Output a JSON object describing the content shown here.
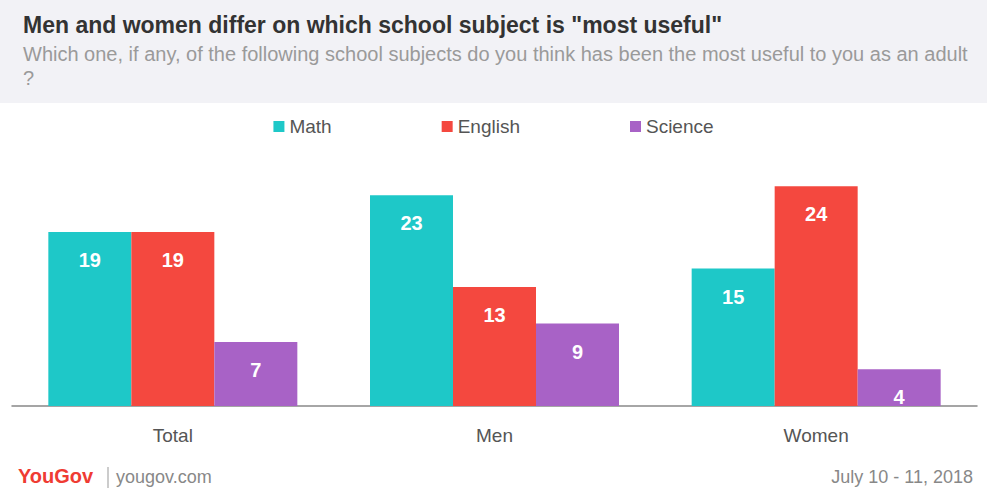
{
  "chart_data": {
    "type": "bar",
    "title": "Men and women differ on which school subject is \"most useful\"",
    "subtitle": "Which one, if any, of the following school subjects do you think has been the most useful to you as an adult?",
    "categories": [
      "Total",
      "Men",
      "Women"
    ],
    "series": [
      {
        "name": "Math",
        "color": "#1ec8c8",
        "values": [
          19,
          23,
          15
        ]
      },
      {
        "name": "English",
        "color": "#f4483f",
        "values": [
          19,
          13,
          24
        ]
      },
      {
        "name": "Science",
        "color": "#a862c6",
        "values": [
          7,
          9,
          4
        ]
      }
    ],
    "ylim": [
      0,
      25
    ],
    "yticks": [
      0,
      25
    ],
    "grid": false,
    "legend": "top",
    "data_labels": true,
    "tick_labels": "x",
    "annotations": [
      "YouGov",
      "yougov.com",
      "July 10 - 11, 2018"
    ]
  }
}
